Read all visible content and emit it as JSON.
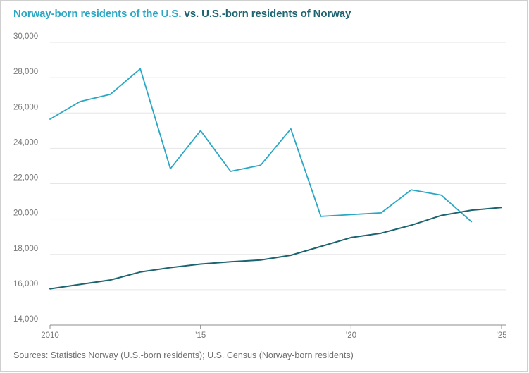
{
  "title": {
    "part1": "Norway-born residents of the U.S.",
    "part2": "vs. U.S.-born residents of Norway"
  },
  "source": "Sources: Statistics Norway (U.S.-born residents); U.S. Census (Norway-born residents)",
  "colors": {
    "norway_born_in_us": "#2aa7c4",
    "us_born_in_norway": "#1c6470",
    "gridline": "#e6e6e6",
    "baseline": "#8c8c8c"
  },
  "chart_data": {
    "type": "line",
    "title": "Norway-born residents of the U.S. vs. U.S.-born residents of Norway",
    "xlabel": "",
    "ylabel": "",
    "xlim": [
      2010,
      2025
    ],
    "ylim": [
      14000,
      30000
    ],
    "grid": true,
    "x_ticks": [
      {
        "value": 2010,
        "label": "2010"
      },
      {
        "value": 2015,
        "label": "’15"
      },
      {
        "value": 2020,
        "label": "’20"
      },
      {
        "value": 2025,
        "label": "’25"
      }
    ],
    "y_ticks": [
      {
        "value": 14000,
        "label": "14,000"
      },
      {
        "value": 16000,
        "label": "16,000"
      },
      {
        "value": 18000,
        "label": "18,000"
      },
      {
        "value": 20000,
        "label": "20,000"
      },
      {
        "value": 22000,
        "label": "22,000"
      },
      {
        "value": 24000,
        "label": "24,000"
      },
      {
        "value": 26000,
        "label": "26,000"
      },
      {
        "value": 28000,
        "label": "28,000"
      },
      {
        "value": 30000,
        "label": "30,000"
      }
    ],
    "series": [
      {
        "name": "Norway-born residents of the U.S.",
        "color_key": "norway_born_in_us",
        "x": [
          2010,
          2011,
          2012,
          2013,
          2014,
          2015,
          2016,
          2017,
          2018,
          2019,
          2020,
          2021,
          2022,
          2023,
          2024
        ],
        "values": [
          25650,
          26650,
          27050,
          28500,
          22850,
          25000,
          22700,
          23050,
          25100,
          20150,
          20250,
          20350,
          21650,
          21350,
          19850
        ]
      },
      {
        "name": "U.S.-born residents of Norway",
        "color_key": "us_born_in_norway",
        "x": [
          2010,
          2011,
          2012,
          2013,
          2014,
          2015,
          2016,
          2017,
          2018,
          2019,
          2020,
          2021,
          2022,
          2023,
          2024,
          2025
        ],
        "values": [
          16050,
          16300,
          16550,
          17000,
          17250,
          17450,
          17580,
          17680,
          17950,
          18450,
          18950,
          19200,
          19650,
          20200,
          20500,
          20650
        ]
      }
    ]
  }
}
